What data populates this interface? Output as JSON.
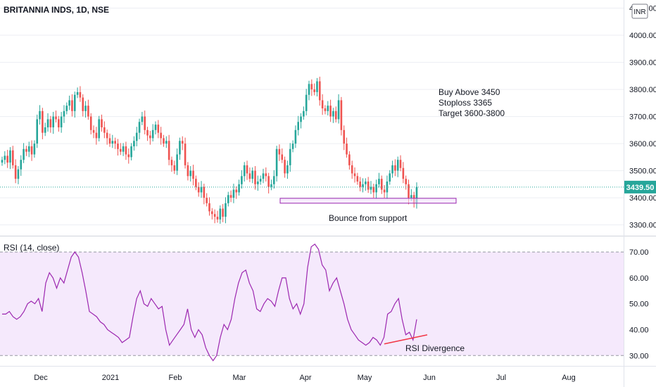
{
  "header": {
    "symbol_title": "BRITANNIA INDS, 1D, NSE"
  },
  "currency_badge": "INR",
  "colors": {
    "up": "#26a69a",
    "down": "#ef5350",
    "rsi_line": "#9c27b0",
    "rsi_band": "#f2e1fb",
    "last_price_bg": "#26a69a",
    "support_box": "#9c27b0",
    "divergence_line": "#f23645",
    "grid": "#e0e3eb"
  },
  "annotations": {
    "trade_plan": [
      "Buy Above 3450",
      "Stoploss 3365",
      "Target 3600-3800"
    ],
    "support_label": "Bounce from support",
    "rsi_divergence_label": "RSI Divergence"
  },
  "rsi_panel": {
    "title": "RSI (14, close)"
  },
  "chart_data": [
    {
      "type": "candlestick",
      "title": "BRITANNIA INDS, 1D, NSE",
      "ylim": [
        3260,
        4130
      ],
      "y_ticks": [
        "4100.00",
        "4000.00",
        "3900.00",
        "3800.00",
        "3700.00",
        "3600.00",
        "3500.00",
        "3400.00",
        "3300.00"
      ],
      "y_tick_values": [
        4100,
        4000,
        3900,
        3800,
        3700,
        3600,
        3500,
        3400,
        3300
      ],
      "last_price": 3439.5,
      "last_price_label": "3439.50",
      "x_tick_labels": [
        "Dec",
        "2021",
        "Feb",
        "Mar",
        "Apr",
        "May",
        "Jun",
        "Jul",
        "Aug"
      ],
      "support_zone": {
        "low": 3380,
        "high": 3398
      },
      "close": [
        3540,
        3555,
        3530,
        3575,
        3520,
        3470,
        3505,
        3540,
        3580,
        3570,
        3590,
        3560,
        3600,
        3690,
        3720,
        3640,
        3660,
        3690,
        3660,
        3700,
        3690,
        3660,
        3700,
        3720,
        3740,
        3760,
        3720,
        3780,
        3790,
        3770,
        3720,
        3740,
        3700,
        3650,
        3640,
        3620,
        3690,
        3660,
        3640,
        3620,
        3600,
        3610,
        3600,
        3580,
        3570,
        3590,
        3560,
        3550,
        3590,
        3610,
        3640,
        3680,
        3700,
        3650,
        3630,
        3620,
        3650,
        3670,
        3640,
        3620,
        3600,
        3610,
        3540,
        3520,
        3500,
        3560,
        3610,
        3600,
        3520,
        3480,
        3500,
        3470,
        3440,
        3420,
        3440,
        3400,
        3380,
        3350,
        3340,
        3330,
        3320,
        3360,
        3330,
        3380,
        3410,
        3400,
        3430,
        3420,
        3450,
        3480,
        3520,
        3490,
        3470,
        3500,
        3450,
        3460,
        3470,
        3490,
        3480,
        3440,
        3450,
        3480,
        3580,
        3560,
        3540,
        3490,
        3520,
        3580,
        3600,
        3650,
        3680,
        3700,
        3720,
        3780,
        3820,
        3800,
        3790,
        3830,
        3760,
        3730,
        3720,
        3740,
        3700,
        3720,
        3690,
        3760,
        3650,
        3600,
        3560,
        3520,
        3490,
        3480,
        3460,
        3440,
        3450,
        3460,
        3430,
        3440,
        3420,
        3450,
        3470,
        3430,
        3420,
        3460,
        3490,
        3520,
        3500,
        3540,
        3510,
        3470,
        3450,
        3400,
        3410,
        3380,
        3440
      ]
    },
    {
      "type": "line",
      "title": "RSI (14, close)",
      "ylim": [
        26,
        76
      ],
      "y_ticks": [
        "70.00",
        "60.00",
        "50.00",
        "40.00",
        "30.00"
      ],
      "y_tick_values": [
        70,
        60,
        50,
        40,
        30
      ],
      "band": [
        30,
        70
      ],
      "series": [
        {
          "values": [
            46,
            46,
            47,
            45,
            44,
            45,
            47,
            50,
            51,
            50,
            52,
            47,
            58,
            62,
            60,
            56,
            60,
            58,
            63,
            68,
            70,
            68,
            62,
            55,
            47,
            46,
            45,
            43,
            42,
            40,
            39,
            38,
            37,
            35,
            36,
            37,
            45,
            52,
            55,
            50,
            49,
            52,
            50,
            48,
            49,
            40,
            34,
            36,
            38,
            40,
            42,
            48,
            40,
            37,
            40,
            38,
            33,
            30,
            28,
            30,
            37,
            42,
            40,
            44,
            52,
            58,
            62,
            63,
            58,
            55,
            48,
            47,
            50,
            52,
            51,
            49,
            55,
            60,
            60,
            52,
            48,
            50,
            46,
            50,
            64,
            72,
            73,
            71,
            65,
            63,
            55,
            58,
            60,
            55,
            50,
            44,
            40,
            38,
            36,
            35,
            34,
            35,
            37,
            36,
            34,
            37,
            46,
            47,
            50,
            52,
            44,
            38,
            39,
            36,
            44
          ]
        }
      ],
      "divergence_line": {
        "from": 34.5,
        "to": 38
      }
    }
  ]
}
